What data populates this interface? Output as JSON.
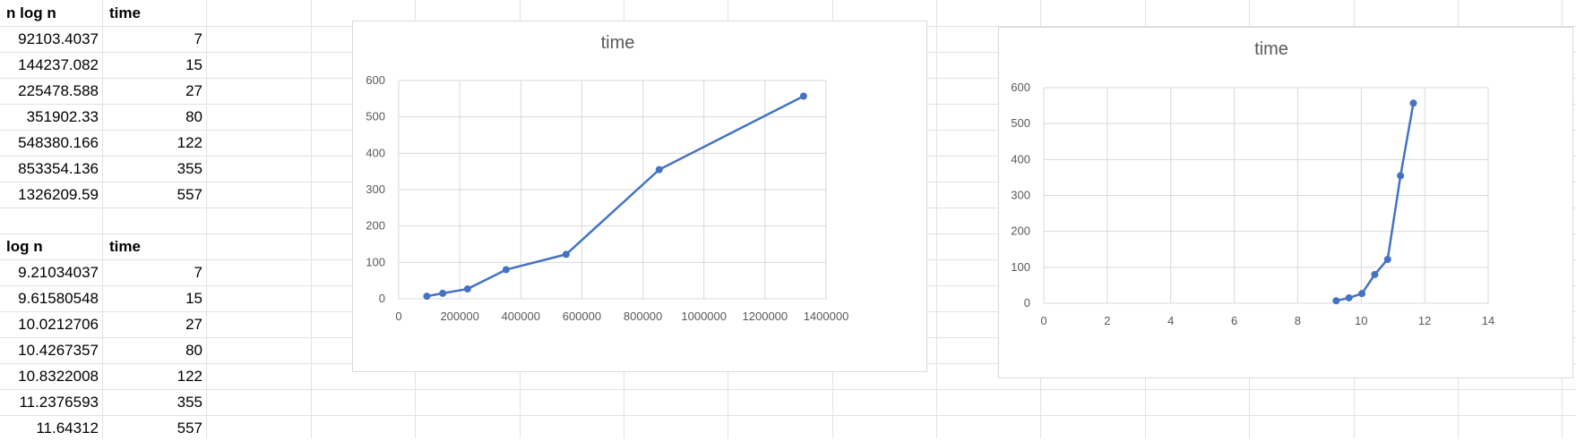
{
  "tables": [
    {
      "headers": [
        "n log n",
        "time"
      ],
      "rows": [
        [
          "92103.4037",
          "7"
        ],
        [
          "144237.082",
          "15"
        ],
        [
          "225478.588",
          "27"
        ],
        [
          "351902.33",
          "80"
        ],
        [
          "548380.166",
          "122"
        ],
        [
          "853354.136",
          "355"
        ],
        [
          "1326209.59",
          "557"
        ]
      ]
    },
    {
      "headers": [
        "log n",
        "time"
      ],
      "rows": [
        [
          "9.21034037",
          "7"
        ],
        [
          "9.61580548",
          "15"
        ],
        [
          "10.0212706",
          "27"
        ],
        [
          "10.4267357",
          "80"
        ],
        [
          "10.8322008",
          "122"
        ],
        [
          "11.2376593",
          "355"
        ],
        [
          "11.64312",
          "557"
        ]
      ]
    }
  ],
  "colors": {
    "series": "#4472c4",
    "grid": "#d9d9d9",
    "text": "#595959"
  },
  "chart_data": [
    {
      "type": "line",
      "title": "time",
      "x": [
        92103.4037,
        144237.082,
        225478.588,
        351902.33,
        548380.166,
        853354.136,
        1326209.59
      ],
      "series": [
        {
          "values": [
            7,
            15,
            27,
            80,
            122,
            355,
            557
          ]
        }
      ],
      "xlim": [
        0,
        1400000
      ],
      "ylim": [
        0,
        600
      ],
      "xticks": [
        0,
        200000,
        400000,
        600000,
        800000,
        1000000,
        1200000,
        1400000
      ],
      "yticks": [
        0,
        100,
        200,
        300,
        400,
        500,
        600
      ],
      "grid": true,
      "markers": true
    },
    {
      "type": "line",
      "title": "time",
      "x": [
        9.21034037,
        9.61580548,
        10.0212706,
        10.4267357,
        10.8322008,
        11.2376593,
        11.64312
      ],
      "series": [
        {
          "values": [
            7,
            15,
            27,
            80,
            122,
            355,
            557
          ]
        }
      ],
      "xlim": [
        0,
        14
      ],
      "ylim": [
        0,
        600
      ],
      "xticks": [
        0,
        2,
        4,
        6,
        8,
        10,
        12,
        14
      ],
      "yticks": [
        0,
        100,
        200,
        300,
        400,
        500,
        600
      ],
      "grid": true,
      "markers": true
    }
  ]
}
